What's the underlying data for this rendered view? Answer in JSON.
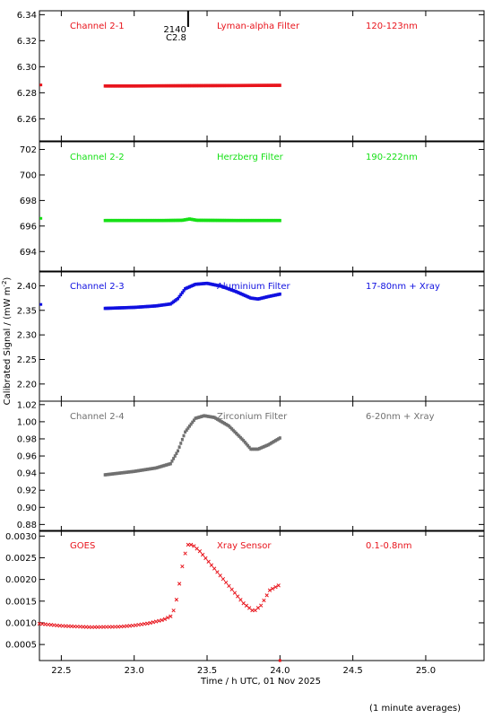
{
  "chart_data": {
    "type": "scatter",
    "xlabel": "Time / h UTC, 01 Nov 2025",
    "ylabel": "Calibrated Signal / (mW m",
    "ylabel_sup": "-2",
    "ylabel_close": ")",
    "footnote": "(1 minute averages)",
    "xlim": [
      22.35,
      25.4
    ],
    "x_ticks": [
      22.5,
      23.0,
      23.5,
      24.0,
      24.5,
      25.0
    ],
    "x_tick_labels": [
      "22.5",
      "23.0",
      "23.5",
      "24.0",
      "24.5",
      "25.0"
    ],
    "marker_label": {
      "x": 23.37,
      "lines": [
        "2140",
        "C2.8"
      ]
    },
    "panels": [
      {
        "label": "Channel 2-1",
        "filter": "Lyman-alpha Filter",
        "band": "120-123nm",
        "color": "#e8141c",
        "ylim": [
          6.243,
          6.343
        ],
        "y_ticks": [
          6.26,
          6.28,
          6.3,
          6.32,
          6.34
        ],
        "y_tick_labels": [
          "6.26",
          "6.28",
          "6.30",
          "6.32",
          "6.34"
        ],
        "outliers": [
          [
            22.36,
            6.286
          ]
        ],
        "series": [
          [
            22.8,
            6.2852
          ],
          [
            23.0,
            6.2852
          ],
          [
            23.2,
            6.2853
          ],
          [
            23.4,
            6.2854
          ],
          [
            23.6,
            6.2855
          ],
          [
            23.8,
            6.2856
          ],
          [
            24.0,
            6.2857
          ]
        ]
      },
      {
        "label": "Channel 2-2",
        "filter": "Herzberg Filter",
        "band": "190-222nm",
        "color": "#16e016",
        "ylim": [
          692.4,
          702.6
        ],
        "y_ticks": [
          694,
          696,
          698,
          700,
          702
        ],
        "y_tick_labels": [
          "694",
          "696",
          "698",
          "700",
          "702"
        ],
        "outliers": [
          [
            22.36,
            696.6
          ]
        ],
        "series": [
          [
            22.8,
            696.43
          ],
          [
            23.2,
            696.43
          ],
          [
            23.33,
            696.45
          ],
          [
            23.38,
            696.55
          ],
          [
            23.43,
            696.45
          ],
          [
            23.7,
            696.43
          ],
          [
            24.0,
            696.43
          ]
        ]
      },
      {
        "label": "Channel 2-3",
        "filter": "Aluminium Filter",
        "band": "17-80nm + Xray",
        "color": "#1010e0",
        "ylim": [
          2.165,
          2.43
        ],
        "y_ticks": [
          2.2,
          2.25,
          2.3,
          2.35,
          2.4
        ],
        "y_tick_labels": [
          "2.20",
          "2.25",
          "2.30",
          "2.35",
          "2.40"
        ],
        "outliers": [
          [
            22.36,
            2.362
          ]
        ],
        "series": [
          [
            22.8,
            2.354
          ],
          [
            23.0,
            2.356
          ],
          [
            23.15,
            2.359
          ],
          [
            23.25,
            2.363
          ],
          [
            23.3,
            2.374
          ],
          [
            23.35,
            2.394
          ],
          [
            23.42,
            2.403
          ],
          [
            23.5,
            2.405
          ],
          [
            23.6,
            2.399
          ],
          [
            23.7,
            2.388
          ],
          [
            23.8,
            2.375
          ],
          [
            23.85,
            2.373
          ],
          [
            23.92,
            2.378
          ],
          [
            24.0,
            2.383
          ]
        ]
      },
      {
        "label": "Channel 2-4",
        "filter": "Zirconium Filter",
        "band": "6-20nm + Xray",
        "color": "#707070",
        "ylim": [
          0.872,
          1.024
        ],
        "y_ticks": [
          0.88,
          0.9,
          0.92,
          0.94,
          0.96,
          0.98,
          1.0,
          1.02
        ],
        "y_tick_labels": [
          "0.88",
          "0.90",
          "0.92",
          "0.94",
          "0.96",
          "0.98",
          "1.00",
          "1.02"
        ],
        "outliers": [],
        "series": [
          [
            22.8,
            0.938
          ],
          [
            23.0,
            0.942
          ],
          [
            23.15,
            0.946
          ],
          [
            23.25,
            0.951
          ],
          [
            23.3,
            0.966
          ],
          [
            23.35,
            0.988
          ],
          [
            23.42,
            1.004
          ],
          [
            23.48,
            1.007
          ],
          [
            23.55,
            1.005
          ],
          [
            23.65,
            0.995
          ],
          [
            23.75,
            0.978
          ],
          [
            23.8,
            0.968
          ],
          [
            23.85,
            0.968
          ],
          [
            23.92,
            0.973
          ],
          [
            24.0,
            0.981
          ]
        ]
      },
      {
        "label": "GOES",
        "filter": "Xray Sensor",
        "band": "0.1-0.8nm",
        "color": "#e8141c",
        "ylim": [
          0.00013,
          0.00313
        ],
        "y_ticks": [
          0.0005,
          0.001,
          0.0015,
          0.002,
          0.0025,
          0.003
        ],
        "y_tick_labels": [
          "0.0005",
          "0.0010",
          "0.0015",
          "0.0020",
          "0.0025",
          "0.0030"
        ],
        "outliers": [
          [
            24.0,
            0.00013
          ]
        ],
        "series": [
          [
            22.35,
            0.00098
          ],
          [
            22.5,
            0.00093
          ],
          [
            22.7,
            0.0009
          ],
          [
            22.9,
            0.00091
          ],
          [
            23.0,
            0.00094
          ],
          [
            23.1,
            0.00099
          ],
          [
            23.2,
            0.00107
          ],
          [
            23.25,
            0.00115
          ],
          [
            23.28,
            0.00135
          ],
          [
            23.31,
            0.0019
          ],
          [
            23.34,
            0.0025
          ],
          [
            23.37,
            0.0028
          ],
          [
            23.4,
            0.0028
          ],
          [
            23.45,
            0.00265
          ],
          [
            23.55,
            0.00225
          ],
          [
            23.65,
            0.00185
          ],
          [
            23.75,
            0.00145
          ],
          [
            23.82,
            0.00126
          ],
          [
            23.87,
            0.0014
          ],
          [
            23.93,
            0.00175
          ],
          [
            24.0,
            0.00188
          ]
        ]
      }
    ]
  }
}
